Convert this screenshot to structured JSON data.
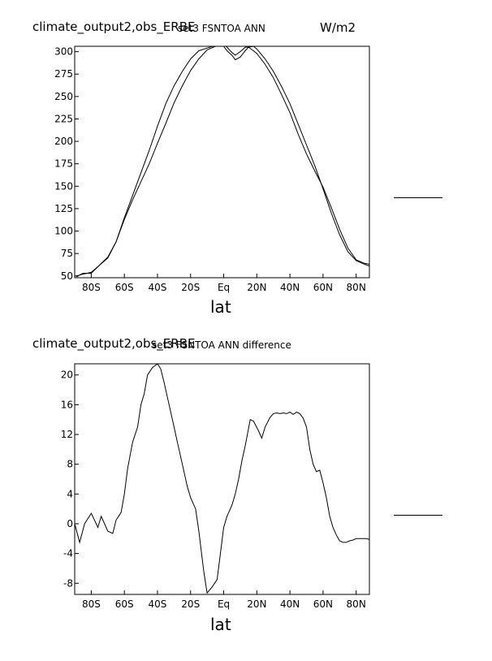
{
  "chart_data": [
    {
      "type": "line",
      "header_left": "climate_output2,obs_ERBE",
      "header_center": "set3 FSNTOA ANN",
      "units": "W/m2",
      "xlabel": "lat",
      "ylabel": "",
      "xlim": [
        -90,
        88
      ],
      "ylim": [
        48,
        306
      ],
      "x_ticks": [
        -80,
        -60,
        -40,
        -20,
        0,
        20,
        40,
        60,
        80
      ],
      "x_tick_labels": [
        "80S",
        "60S",
        "40S",
        "20S",
        "Eq",
        "20N",
        "40N",
        "60N",
        "80N"
      ],
      "y_ticks": [
        50,
        75,
        100,
        125,
        150,
        175,
        200,
        225,
        250,
        275,
        300
      ],
      "y_tick_labels": [
        "50",
        "75",
        "100",
        "125",
        "150",
        "175",
        "200",
        "225",
        "250",
        "275",
        "300"
      ],
      "series": [
        {
          "x": [
            -89,
            -85,
            -80,
            -75,
            -70,
            -65,
            -60,
            -55,
            -50,
            -45,
            -40,
            -35,
            -30,
            -25,
            -20,
            -15,
            -10,
            -5,
            0,
            2,
            5,
            7,
            10,
            13,
            15,
            18,
            20,
            25,
            30,
            35,
            40,
            45,
            50,
            55,
            60,
            65,
            70,
            75,
            80,
            85,
            88
          ],
          "y": [
            49,
            53,
            53,
            62,
            71,
            88,
            115,
            140,
            165,
            190,
            217,
            242,
            262,
            278,
            292,
            301,
            304,
            307,
            309,
            305,
            299,
            296,
            300,
            305,
            305,
            301,
            298,
            286,
            271,
            252,
            232,
            208,
            186,
            167,
            149,
            126,
            102,
            81,
            68,
            64,
            63
          ]
        },
        {
          "x": [
            -89,
            -85,
            -80,
            -75,
            -70,
            -65,
            -60,
            -55,
            -50,
            -45,
            -40,
            -35,
            -30,
            -25,
            -20,
            -15,
            -10,
            -5,
            0,
            2,
            5,
            7,
            10,
            13,
            15,
            18,
            20,
            25,
            30,
            35,
            40,
            45,
            50,
            55,
            60,
            65,
            70,
            75,
            80,
            85,
            88
          ],
          "y": [
            50,
            52,
            54,
            62,
            70,
            88,
            113,
            135,
            155,
            175,
            198,
            220,
            243,
            262,
            279,
            292,
            302,
            306,
            306,
            301,
            296,
            291,
            294,
            301,
            305,
            306,
            303,
            292,
            278,
            261,
            242,
            219,
            196,
            173,
            147,
            120,
            96,
            77,
            67,
            63,
            61
          ]
        }
      ],
      "legend_placement": "right"
    },
    {
      "type": "line",
      "header_left": "climate_output2,obs_ERBE",
      "header_center": "set3 FSNTOA ANN difference",
      "xlabel": "lat",
      "ylabel": "",
      "xlim": [
        -90,
        88
      ],
      "ylim": [
        -9.5,
        21.5
      ],
      "x_ticks": [
        -80,
        -60,
        -40,
        -20,
        0,
        20,
        40,
        60,
        80
      ],
      "x_tick_labels": [
        "80S",
        "60S",
        "40S",
        "20S",
        "Eq",
        "20N",
        "40N",
        "60N",
        "80N"
      ],
      "y_ticks": [
        -8,
        -4,
        0,
        4,
        8,
        12,
        16,
        20
      ],
      "y_tick_labels": [
        "-8",
        "-4",
        "0",
        "4",
        "8",
        "12",
        "16",
        "20"
      ],
      "series": [
        {
          "x": [
            -90,
            -87,
            -84,
            -80,
            -76,
            -74,
            -70,
            -67,
            -65,
            -62,
            -60,
            -58,
            -55,
            -52,
            -50,
            -48,
            -46,
            -43,
            -40,
            -38,
            -36,
            -34,
            -32,
            -30,
            -28,
            -25,
            -22,
            -20,
            -17,
            -15,
            -12,
            -10,
            -7,
            -4,
            -2,
            0,
            2,
            5,
            7,
            9,
            11,
            13,
            16,
            18,
            21,
            23,
            25,
            28,
            30,
            32,
            34,
            36,
            38,
            40,
            42,
            44,
            46,
            48,
            50,
            52,
            54,
            56,
            58,
            60,
            62,
            64,
            66,
            68,
            70,
            72,
            74,
            76,
            78,
            80,
            82,
            84,
            86,
            88
          ],
          "y": [
            0,
            -2.5,
            0,
            1.4,
            -0.5,
            1.0,
            -1.0,
            -1.3,
            0.5,
            1.5,
            4.0,
            7.5,
            11.0,
            13.0,
            16.0,
            17.5,
            20.0,
            21.0,
            21.5,
            20.8,
            19.0,
            17.0,
            15.0,
            13.0,
            11.0,
            8.0,
            5.0,
            3.5,
            2.0,
            -1.0,
            -6.5,
            -9.3,
            -8.5,
            -7.5,
            -4.0,
            -0.5,
            1.0,
            2.5,
            4.0,
            6.0,
            8.5,
            10.5,
            14.0,
            13.8,
            12.5,
            11.5,
            13.0,
            14.3,
            14.8,
            14.9,
            14.8,
            14.9,
            14.8,
            15.0,
            14.7,
            15.0,
            14.8,
            14.2,
            13.0,
            10.0,
            8.0,
            7.0,
            7.2,
            5.5,
            3.5,
            1.0,
            -0.5,
            -1.5,
            -2.3,
            -2.5,
            -2.5,
            -2.3,
            -2.2,
            -2.0,
            -2.0,
            -2.0,
            -2.0,
            -2.1
          ]
        }
      ],
      "legend_placement": "right"
    }
  ]
}
